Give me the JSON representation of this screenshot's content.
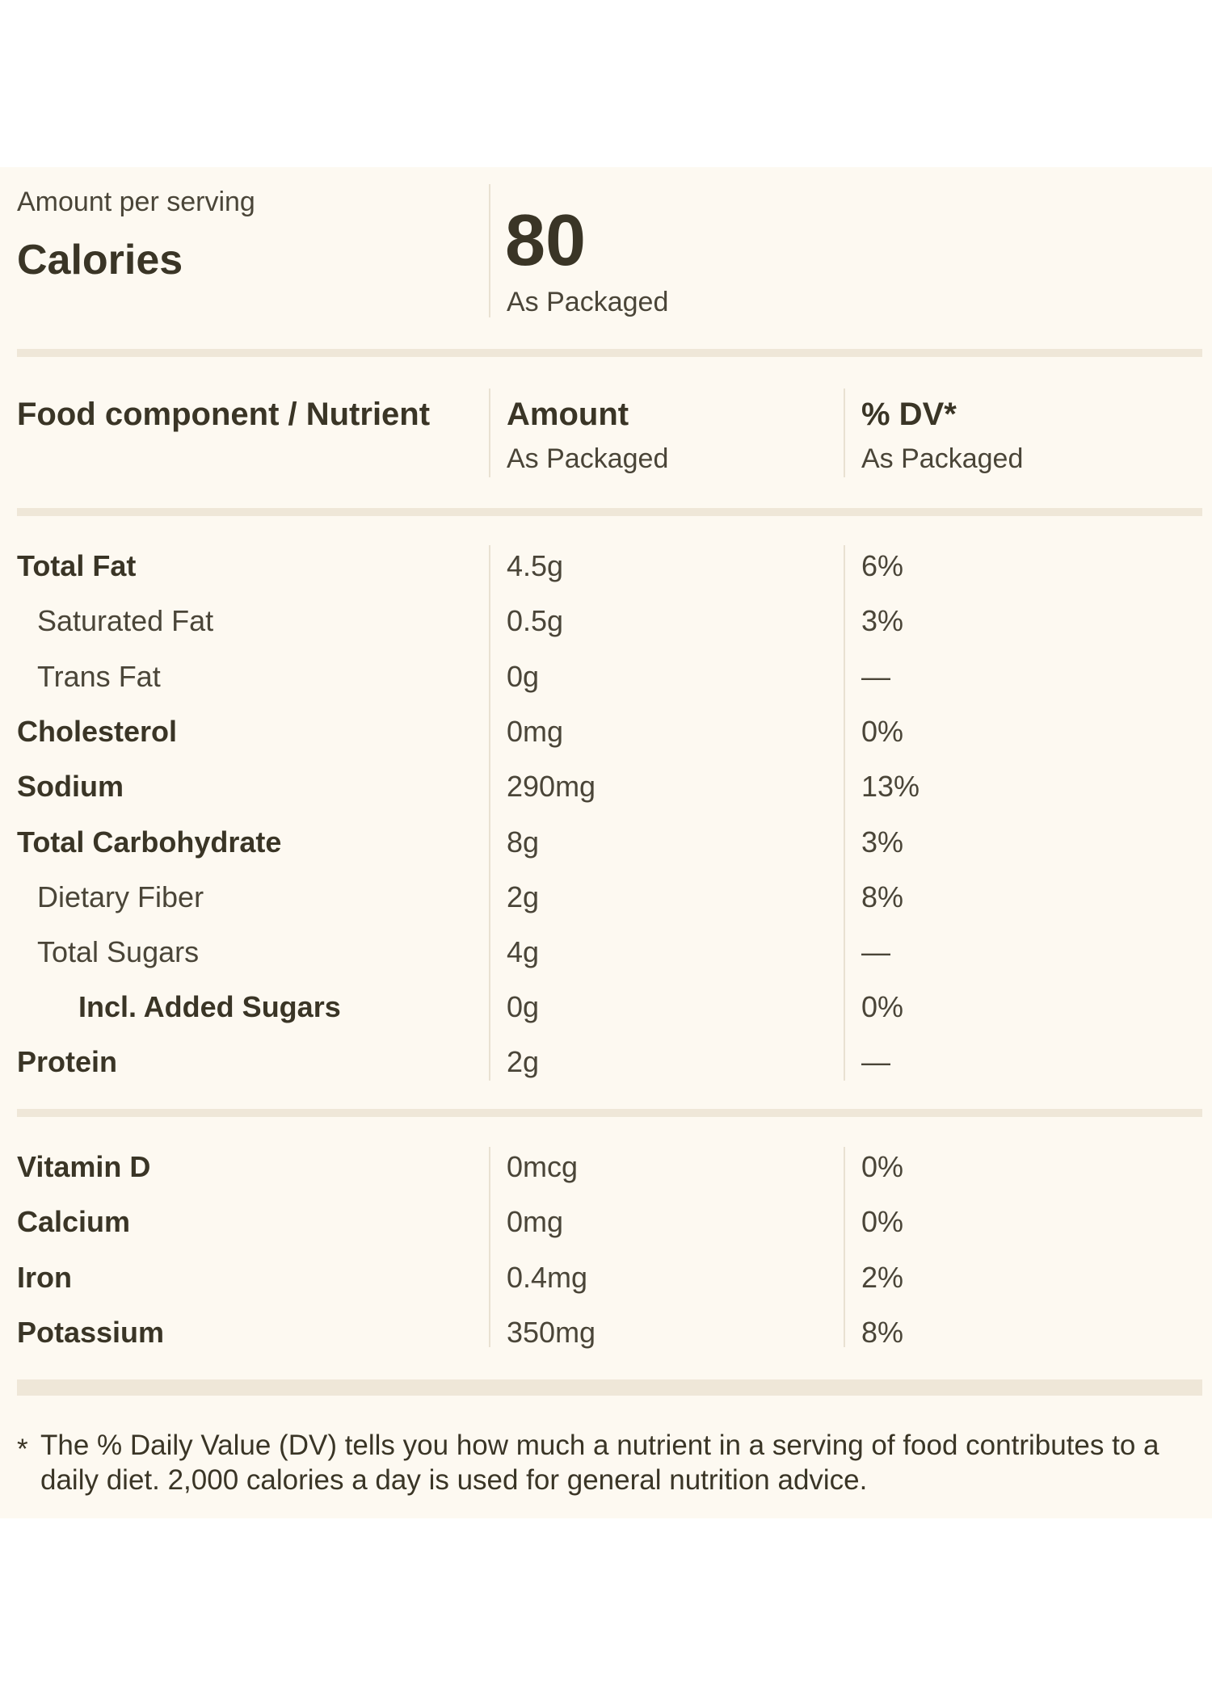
{
  "calories_section": {
    "amount_per_serving_label": "Amount per serving",
    "calories_label": "Calories",
    "calories_value": "80",
    "calories_basis": "As Packaged"
  },
  "table_header": {
    "nutrient_col": "Food component / Nutrient",
    "amount_col": "Amount",
    "amount_basis": "As Packaged",
    "dv_col": "% DV*",
    "dv_basis": "As Packaged"
  },
  "nutrients": [
    {
      "name": "Total Fat",
      "amount": "4.5g",
      "dv": "6%"
    },
    {
      "name": "Saturated Fat",
      "amount": "0.5g",
      "dv": "3%"
    },
    {
      "name": "Trans Fat",
      "amount": "0g",
      "dv": "—"
    },
    {
      "name": "Cholesterol",
      "amount": "0mg",
      "dv": "0%"
    },
    {
      "name": "Sodium",
      "amount": "290mg",
      "dv": "13%"
    },
    {
      "name": "Total Carbohydrate",
      "amount": "8g",
      "dv": "3%"
    },
    {
      "name": "Dietary Fiber",
      "amount": "2g",
      "dv": "8%"
    },
    {
      "name": "Total Sugars",
      "amount": "4g",
      "dv": "—"
    },
    {
      "name": "Incl. Added Sugars",
      "amount": "0g",
      "dv": "0%"
    },
    {
      "name": "Protein",
      "amount": "2g",
      "dv": "—"
    }
  ],
  "vitamins": [
    {
      "name": "Vitamin D",
      "amount": "0mcg",
      "dv": "0%"
    },
    {
      "name": "Calcium",
      "amount": "0mg",
      "dv": "0%"
    },
    {
      "name": "Iron",
      "amount": "0.4mg",
      "dv": "2%"
    },
    {
      "name": "Potassium",
      "amount": "350mg",
      "dv": "8%"
    }
  ],
  "footnote": {
    "marker": "*",
    "text": "The % Daily Value (DV) tells you how much a nutrient in a serving of food contributes to a daily diet. 2,000 calories a day is used for general nutrition advice."
  }
}
